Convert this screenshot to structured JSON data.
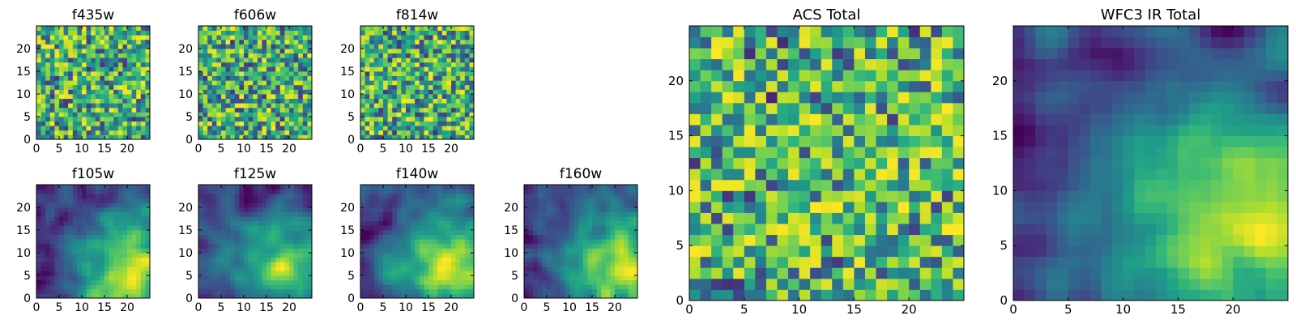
{
  "chart_data": [
    {
      "type": "heatmap",
      "title": "f435w",
      "xlabel": "",
      "ylabel": "",
      "grid": false,
      "xlim": [
        0,
        25
      ],
      "ylim": [
        0,
        25
      ],
      "xticks": [
        0,
        5,
        10,
        15,
        20
      ],
      "yticks": [
        0,
        5,
        10,
        15,
        20
      ],
      "grid_size": 25,
      "colormap": "viridis",
      "texture": "noise",
      "seed": 11
    },
    {
      "type": "heatmap",
      "title": "f606w",
      "xlabel": "",
      "ylabel": "",
      "grid": false,
      "xlim": [
        0,
        25
      ],
      "ylim": [
        0,
        25
      ],
      "xticks": [
        0,
        5,
        10,
        15,
        20
      ],
      "yticks": [
        0,
        5,
        10,
        15,
        20
      ],
      "grid_size": 25,
      "colormap": "viridis",
      "texture": "noise",
      "seed": 23
    },
    {
      "type": "heatmap",
      "title": "f814w",
      "xlabel": "",
      "ylabel": "",
      "grid": false,
      "xlim": [
        0,
        25
      ],
      "ylim": [
        0,
        25
      ],
      "xticks": [
        0,
        5,
        10,
        15,
        20
      ],
      "yticks": [
        0,
        5,
        10,
        15,
        20
      ],
      "grid_size": 25,
      "colormap": "viridis",
      "texture": "noise",
      "seed": 37
    },
    {
      "type": "heatmap",
      "title": "f105w",
      "xlabel": "",
      "ylabel": "",
      "grid": false,
      "xlim": [
        0,
        25
      ],
      "ylim": [
        0,
        25
      ],
      "xticks": [
        0,
        5,
        10,
        15,
        20
      ],
      "yticks": [
        0,
        5,
        10,
        15,
        20
      ],
      "grid_size": 25,
      "colormap": "viridis",
      "texture": "smooth",
      "seed": 41
    },
    {
      "type": "heatmap",
      "title": "f125w",
      "xlabel": "",
      "ylabel": "",
      "grid": false,
      "xlim": [
        0,
        25
      ],
      "ylim": [
        0,
        25
      ],
      "xticks": [
        0,
        5,
        10,
        15,
        20
      ],
      "yticks": [
        0,
        5,
        10,
        15,
        20
      ],
      "grid_size": 25,
      "colormap": "viridis",
      "texture": "smooth",
      "seed": 53
    },
    {
      "type": "heatmap",
      "title": "f140w",
      "xlabel": "",
      "ylabel": "",
      "grid": false,
      "xlim": [
        0,
        25
      ],
      "ylim": [
        0,
        25
      ],
      "xticks": [
        0,
        5,
        10,
        15,
        20
      ],
      "yticks": [
        0,
        5,
        10,
        15,
        20
      ],
      "grid_size": 25,
      "colormap": "viridis",
      "texture": "smooth",
      "seed": 67
    },
    {
      "type": "heatmap",
      "title": "f160w",
      "xlabel": "",
      "ylabel": "",
      "grid": false,
      "xlim": [
        0,
        25
      ],
      "ylim": [
        0,
        25
      ],
      "xticks": [
        0,
        5,
        10,
        15,
        20
      ],
      "yticks": [
        0,
        5,
        10,
        15,
        20
      ],
      "grid_size": 25,
      "colormap": "viridis",
      "texture": "smooth",
      "seed": 79
    },
    {
      "type": "heatmap",
      "title": "ACS Total",
      "xlabel": "",
      "ylabel": "",
      "grid": false,
      "xlim": [
        0,
        25
      ],
      "ylim": [
        0,
        25
      ],
      "xticks": [
        0,
        5,
        10,
        15,
        20
      ],
      "yticks": [
        0,
        5,
        10,
        15,
        20
      ],
      "grid_size": 25,
      "colormap": "viridis",
      "texture": "noise_bright",
      "seed": 97
    },
    {
      "type": "heatmap",
      "title": "WFC3 IR Total",
      "xlabel": "",
      "ylabel": "",
      "grid": false,
      "xlim": [
        0,
        25
      ],
      "ylim": [
        0,
        25
      ],
      "xticks": [
        0,
        5,
        10,
        15,
        20
      ],
      "yticks": [
        0,
        5,
        10,
        15,
        20
      ],
      "grid_size": 25,
      "colormap": "viridis",
      "texture": "smooth",
      "seed": 113
    }
  ]
}
